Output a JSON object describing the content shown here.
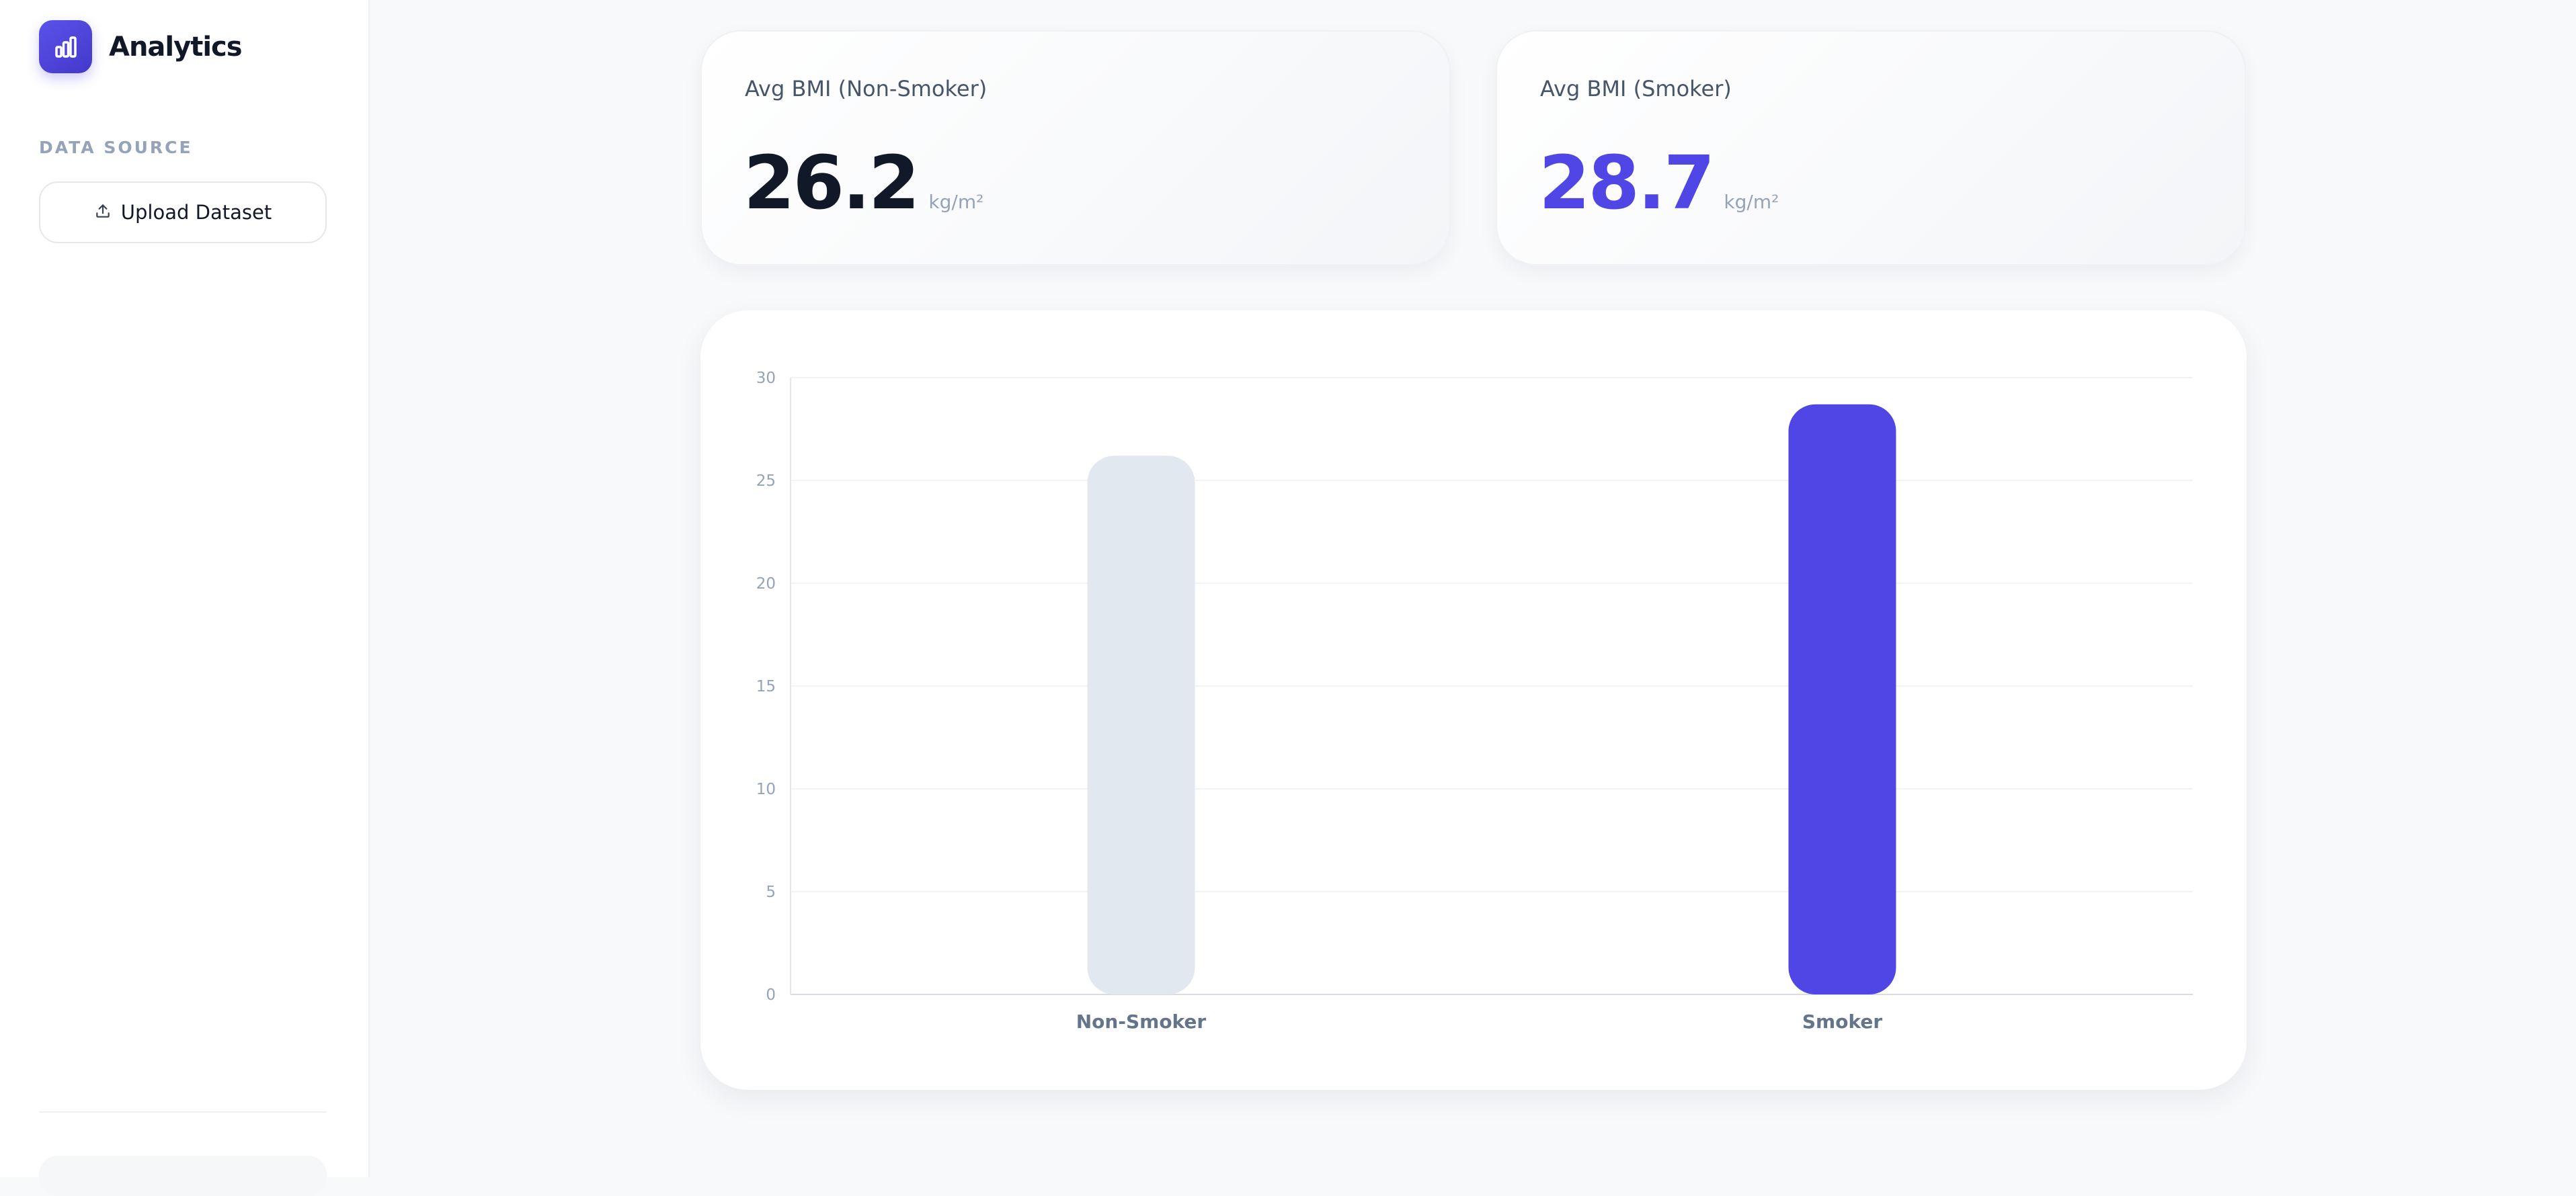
{
  "app": {
    "name": "Analytics",
    "logo_icon": "bar-chart-icon",
    "accent_color": "#4f46e5"
  },
  "sidebar": {
    "section_label": "DATA SOURCE",
    "upload_button": {
      "label": "Upload Dataset",
      "icon": "upload-icon"
    }
  },
  "stats": [
    {
      "title": "Avg BMI (Non-Smoker)",
      "value": "26.2",
      "unit": "kg/m²",
      "value_color": "#111827"
    },
    {
      "title": "Avg BMI (Smoker)",
      "value": "28.7",
      "unit": "kg/m²",
      "value_color": "#4f46e5"
    }
  ],
  "chart_data": {
    "type": "bar",
    "categories": [
      "Non-Smoker",
      "Smoker"
    ],
    "values": [
      26.2,
      28.7
    ],
    "bar_colors": [
      "#e2e8f0",
      "#4f46e5"
    ],
    "ylim": [
      0,
      30
    ],
    "yticks": [
      0,
      5,
      10,
      15,
      20,
      25,
      30
    ],
    "grid": true
  }
}
